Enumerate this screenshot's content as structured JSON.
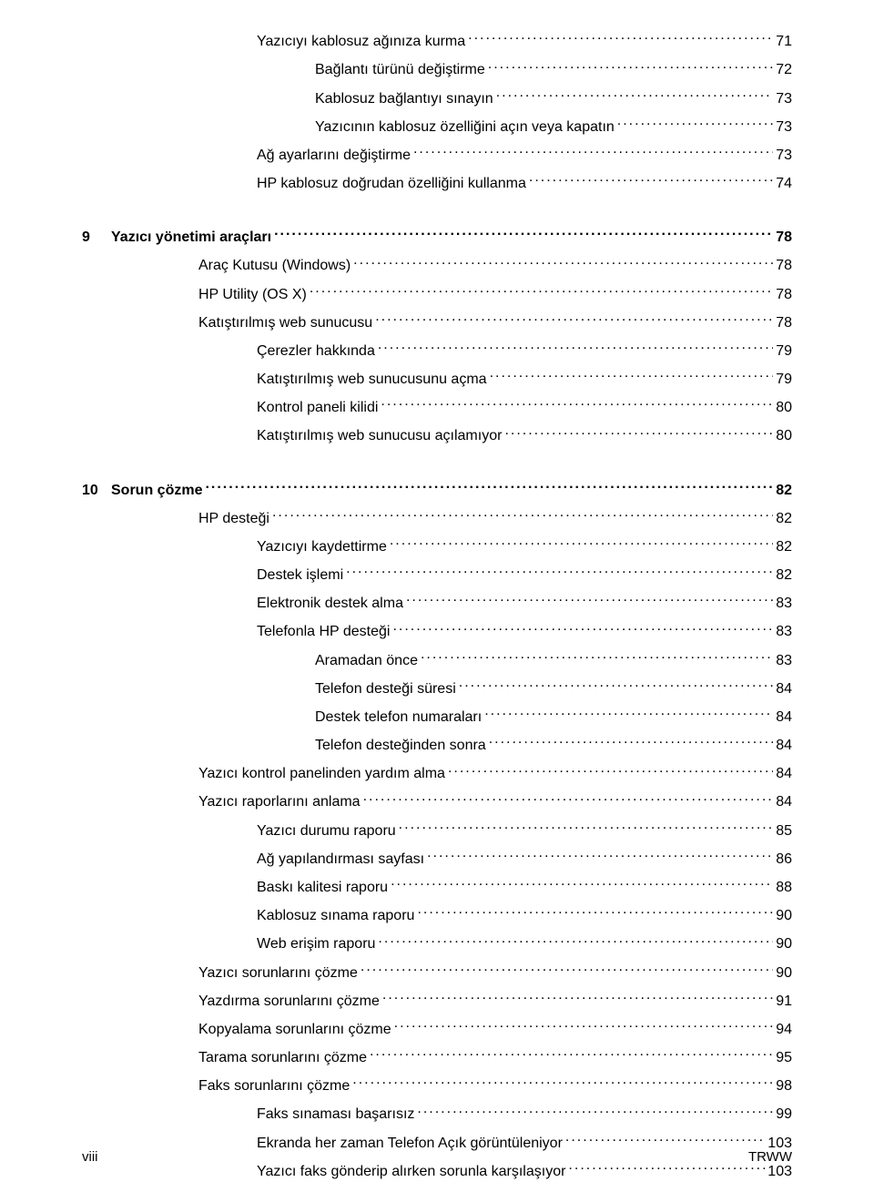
{
  "toc": {
    "top": [
      {
        "level": 3,
        "label": "Yazıcıyı kablosuz ağınıza kurma",
        "page": "71"
      },
      {
        "level": 4,
        "label": "Bağlantı türünü değiştirme",
        "page": "72"
      },
      {
        "level": 4,
        "label": "Kablosuz bağlantıyı sınayın",
        "page": "73"
      },
      {
        "level": 4,
        "label": "Yazıcının kablosuz özelliğini açın veya kapatın",
        "page": "73"
      },
      {
        "level": 3,
        "label": "Ağ ayarlarını değiştirme",
        "page": "73"
      },
      {
        "level": 3,
        "label": "HP kablosuz doğrudan özelliğini kullanma",
        "page": "74"
      }
    ],
    "section9": {
      "num": "9",
      "title": "Yazıcı yönetimi araçları",
      "page": "78",
      "items": [
        {
          "level": 2,
          "label": "Araç Kutusu (Windows)",
          "page": "78"
        },
        {
          "level": 2,
          "label": "HP Utility (OS X)",
          "page": "78"
        },
        {
          "level": 2,
          "label": "Katıştırılmış web sunucusu",
          "page": "78"
        },
        {
          "level": 3,
          "label": "Çerezler hakkında",
          "page": "79"
        },
        {
          "level": 3,
          "label": "Katıştırılmış web sunucusunu açma",
          "page": "79"
        },
        {
          "level": 3,
          "label": "Kontrol paneli kilidi",
          "page": "80"
        },
        {
          "level": 3,
          "label": "Katıştırılmış web sunucusu açılamıyor",
          "page": "80"
        }
      ]
    },
    "section10": {
      "num": "10",
      "title": "Sorun çözme",
      "page": "82",
      "items": [
        {
          "level": 2,
          "label": "HP desteği",
          "page": "82"
        },
        {
          "level": 3,
          "label": "Yazıcıyı kaydettirme",
          "page": "82"
        },
        {
          "level": 3,
          "label": "Destek işlemi",
          "page": "82"
        },
        {
          "level": 3,
          "label": "Elektronik destek alma",
          "page": "83"
        },
        {
          "level": 3,
          "label": "Telefonla HP desteği",
          "page": "83"
        },
        {
          "level": 4,
          "label": "Aramadan önce",
          "page": "83"
        },
        {
          "level": 4,
          "label": "Telefon desteği süresi",
          "page": "84"
        },
        {
          "level": 4,
          "label": "Destek telefon numaraları",
          "page": "84"
        },
        {
          "level": 4,
          "label": "Telefon desteğinden sonra",
          "page": "84"
        },
        {
          "level": 2,
          "label": "Yazıcı kontrol panelinden yardım alma",
          "page": "84"
        },
        {
          "level": 2,
          "label": "Yazıcı raporlarını anlama",
          "page": "84"
        },
        {
          "level": 3,
          "label": "Yazıcı durumu raporu",
          "page": "85"
        },
        {
          "level": 3,
          "label": "Ağ yapılandırması sayfası",
          "page": "86"
        },
        {
          "level": 3,
          "label": "Baskı kalitesi raporu",
          "page": "88"
        },
        {
          "level": 3,
          "label": "Kablosuz sınama raporu",
          "page": "90"
        },
        {
          "level": 3,
          "label": "Web erişim raporu",
          "page": "90"
        },
        {
          "level": 2,
          "label": "Yazıcı sorunlarını çözme",
          "page": "90"
        },
        {
          "level": 2,
          "label": "Yazdırma sorunlarını çözme",
          "page": "91"
        },
        {
          "level": 2,
          "label": "Kopyalama sorunlarını çözme",
          "page": "94"
        },
        {
          "level": 2,
          "label": "Tarama sorunlarını çözme",
          "page": "95"
        },
        {
          "level": 2,
          "label": "Faks sorunlarını çözme",
          "page": "98"
        },
        {
          "level": 3,
          "label": "Faks sınaması başarısız",
          "page": "99"
        },
        {
          "level": 3,
          "label": "Ekranda her zaman Telefon Açık görüntüleniyor",
          "page": "103"
        },
        {
          "level": 3,
          "label": "Yazıcı faks gönderip alırken sorunla karşılaşıyor",
          "page": "103"
        }
      ]
    }
  },
  "footer": {
    "left": "viii",
    "right": "TRWW"
  }
}
